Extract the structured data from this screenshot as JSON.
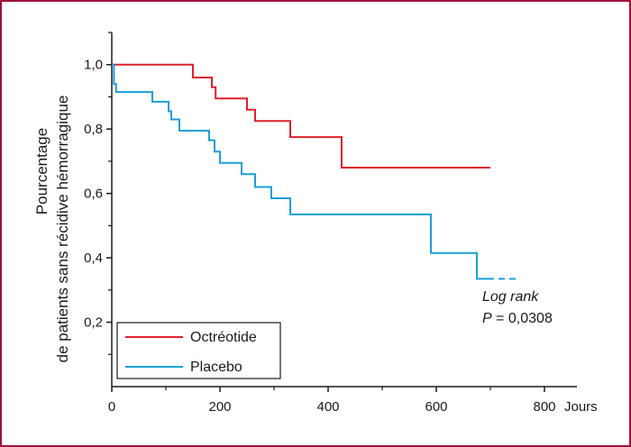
{
  "chart_data": {
    "type": "line",
    "step": true,
    "xlabel": "Jours",
    "ylabel_line1": "Pourcentage",
    "ylabel_line2": "de patients sans récidive hémorragique",
    "xlim": [
      0,
      860
    ],
    "ylim": [
      0,
      1.1
    ],
    "x_ticks": [
      0,
      200,
      400,
      600,
      800
    ],
    "x_tick_labels": [
      "0",
      "200",
      "400",
      "600",
      "800"
    ],
    "y_ticks": [
      0.2,
      0.4,
      0.6,
      0.8,
      1.0
    ],
    "y_tick_labels": [
      "0,2",
      "0,4",
      "0,6",
      "0,8",
      "1,0"
    ],
    "grid": false,
    "legend_position": "bottom-left",
    "series": [
      {
        "name": "Octréotide",
        "color": "#e0212b",
        "x": [
          0,
          150,
          185,
          192,
          250,
          265,
          330,
          425,
          700
        ],
        "y": [
          1.0,
          0.96,
          0.93,
          0.895,
          0.86,
          0.825,
          0.775,
          0.68,
          0.68
        ]
      },
      {
        "name": "Placebo",
        "color": "#1a9fd9",
        "x": [
          0,
          4,
          8,
          75,
          105,
          110,
          125,
          180,
          190,
          200,
          240,
          265,
          295,
          330,
          590,
          675,
          695
        ],
        "y": [
          1.0,
          0.94,
          0.915,
          0.885,
          0.855,
          0.83,
          0.795,
          0.765,
          0.73,
          0.695,
          0.66,
          0.62,
          0.585,
          0.535,
          0.415,
          0.335,
          0.335
        ],
        "dashed_extension": {
          "x": [
            695,
            750
          ],
          "y": 0.335
        }
      }
    ],
    "annotation": {
      "line1": "Log rank",
      "line2_prefix": "P",
      "line2_rest": " = 0,0308"
    }
  }
}
